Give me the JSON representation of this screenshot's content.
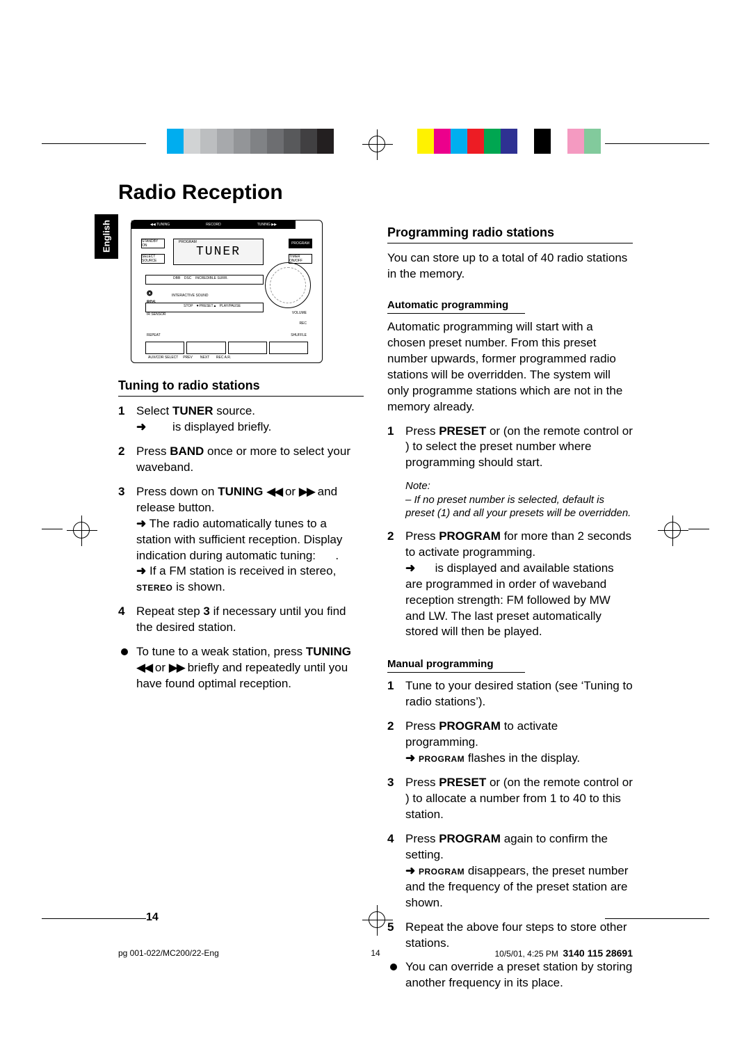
{
  "colorBarLeft": [
    "#00adef",
    "#d1d3d4",
    "#bcbec0",
    "#a7a9ac",
    "#939598",
    "#808285",
    "#6d6e71",
    "#58595b",
    "#414042",
    "#231f20",
    "#ffffff",
    "#ffffff",
    "#ffffff"
  ],
  "colorBarRight": [
    "#fff200",
    "#ec008c",
    "#00aeef",
    "#ed1c24",
    "#00a651",
    "#2e3192",
    "#ffffff",
    "#000000",
    "#ffffff",
    "#f49ac1",
    "#82ca9c",
    "#ffffff"
  ],
  "title": "Radio Reception",
  "langTab": "English",
  "lcdText": "TUNER",
  "device": {
    "labels": [
      "PROGRAM",
      "TIMER ON/OFF",
      "SELECT SOURCE",
      "STANDBY ON",
      "DSC",
      "INCREDIBLE SURR.",
      "DBB",
      "INTERACTIVE SOUND",
      "IR SENSOR",
      "STOP",
      "PRESET",
      "PLAY/PAUSE",
      "VOLUME",
      "REPEAT",
      "TUNING",
      "RECORD",
      "TUNING",
      "SHUFFLE",
      "REC A.R.",
      "AUX/CDR SELECT",
      "PREV",
      "NEXT",
      "CD RDS"
    ]
  },
  "left": {
    "heading": "Tuning to radio stations",
    "s1": {
      "a": "Select ",
      "b": "TUNER",
      "c": " source.",
      "d": " is displayed briefly."
    },
    "s2": {
      "a": "Press ",
      "b": "BAND",
      "c": " once or more to select your waveband."
    },
    "s3": {
      "a": "Press down on ",
      "b": "TUNING ",
      "rw": "◀◀",
      "or": " or ",
      "fw": "▶▶",
      "c": " and release button.",
      "r1": "The radio automatically tunes to a station with sufficient reception. Display indication during automatic tuning: ",
      "r2a": "If a FM station is received in stereo, ",
      "r2b": "STEREO",
      "r2c": " is shown."
    },
    "s4": {
      "a": "Repeat step ",
      "b": "3",
      "c": " if necessary until you find the desired station."
    },
    "bul": {
      "a": "To tune to a weak station, press ",
      "b": "TUNING ",
      "rw": "◀◀",
      "or": " or ",
      "fw": "▶▶",
      "c": " briefly and repeatedly until you have found optimal reception."
    }
  },
  "right": {
    "heading": "Programming radio stations",
    "intro": "You can store up to a total of 40 radio stations in the memory.",
    "autoH": "Automatic programming",
    "autoP": "Automatic programming will start with a chosen preset number. From this preset number upwards, former programmed radio stations will be overridden. The system will only programme stations which are not in the memory already.",
    "a1": {
      "a": "Press ",
      "b": "PRESET ",
      "c": " or  (on the remote control  or  ) to select the preset number where programming should start."
    },
    "note": {
      "t": "Note:",
      "l": "– If no preset number is selected, default is preset (1) and all your presets will be overridden."
    },
    "a2": {
      "a": "Press ",
      "b": "PROGRAM",
      "c": " for more than 2 seconds to activate programming.",
      "r": " is displayed and available stations are programmed in order of waveband reception strength: FM followed by MW and LW. The last preset automatically stored will then be played."
    },
    "manH": "Manual programming",
    "m1": "Tune to your desired station (see ‘Tuning to radio stations’).",
    "m2": {
      "a": "Press ",
      "b": "PROGRAM",
      "c": " to activate programming.",
      "r1": "PROGRAM",
      "r2": " flashes in the display."
    },
    "m3": {
      "a": "Press ",
      "b": "PRESET ",
      "c": " or  (on the remote control  or  ) to allocate a number from 1 to 40 to this station."
    },
    "m4": {
      "a": "Press ",
      "b": "PROGRAM",
      "c": " again to confirm the setting.",
      "r1": "PROGRAM",
      "r2": " disappears, the preset number and the frequency of the preset station are shown."
    },
    "m5": "Repeat the above four steps to store other stations.",
    "mb": "You can override a preset station by storing another frequency in its place."
  },
  "pageNum": "14",
  "footer": {
    "file": "pg 001-022/MC200/22-Eng",
    "page": "14",
    "ts": "10/5/01, 4:25 PM",
    "code": "3140 115 28691"
  }
}
